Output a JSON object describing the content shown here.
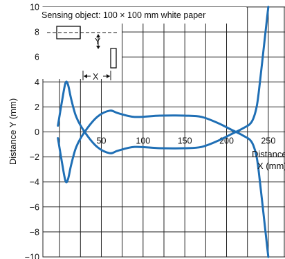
{
  "chart_data": {
    "type": "line",
    "ylabel": "Distance Y (mm)",
    "xlabel_line1": "Distance",
    "xlabel_line2": "X (mm)",
    "annotation": "Sensing object: 100 × 100 mm white paper",
    "inset_label_y": "Y",
    "inset_label_x": "X",
    "xlim": [
      -20,
      270
    ],
    "ylim": [
      -10,
      10
    ],
    "x_ticks": [
      50,
      100,
      150,
      200,
      250
    ],
    "y_ticks": [
      10,
      8,
      6,
      4,
      2,
      0,
      -2,
      -4,
      -6,
      -8,
      -10
    ],
    "y_tick_labels": [
      "10",
      "8",
      "6",
      "4",
      "2",
      "0",
      "−2",
      "−4",
      "−6",
      "−8",
      "−10"
    ],
    "grid": true,
    "series": [
      {
        "x": [
          -2,
          3,
          7,
          10,
          14,
          20,
          30,
          45,
          60,
          70,
          90,
          120,
          150,
          170,
          190,
          205,
          220,
          230,
          236,
          240,
          245,
          250
        ],
        "y": [
          0.5,
          2.5,
          3.9,
          3.8,
          2.6,
          1.2,
          0.0,
          -1.2,
          -1.7,
          -1.5,
          -1.2,
          -1.3,
          -1.3,
          -1.2,
          -0.7,
          -0.2,
          0.3,
          0.8,
          2.0,
          4.0,
          7.0,
          10.0
        ]
      },
      {
        "x": [
          -2,
          3,
          7,
          10,
          14,
          20,
          30,
          45,
          60,
          70,
          90,
          120,
          150,
          170,
          190,
          205,
          220,
          230,
          236,
          240,
          245,
          250
        ],
        "y": [
          -0.5,
          -2.5,
          -3.9,
          -3.8,
          -2.6,
          -1.2,
          0.0,
          1.2,
          1.7,
          1.5,
          1.2,
          1.3,
          1.3,
          1.2,
          0.7,
          0.2,
          -0.3,
          -0.8,
          -2.0,
          -4.0,
          -7.0,
          -10.0
        ]
      }
    ]
  }
}
